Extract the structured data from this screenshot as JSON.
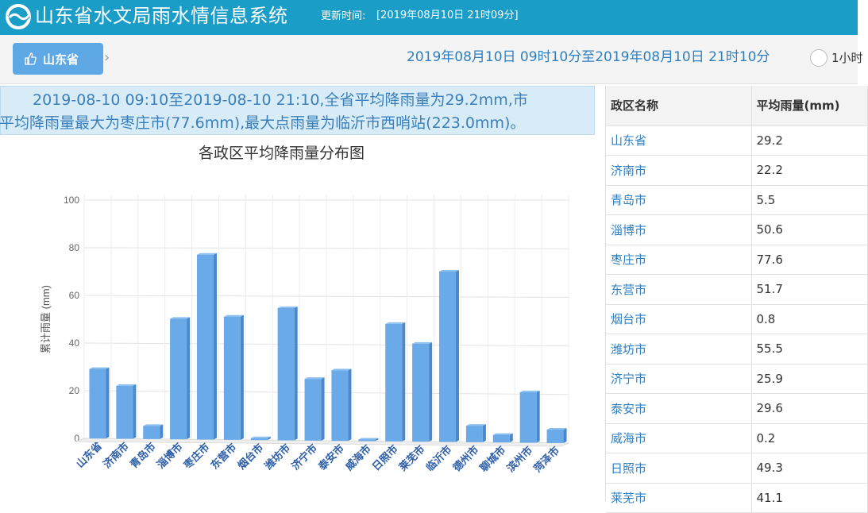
{
  "header": {
    "title": "山东省水文局雨水情信息系统",
    "update_label": "更新时间:",
    "update_time": "[2019年08月10日 21时09分]"
  },
  "toolbar": {
    "region_button": "山东省",
    "breadcrumb_arrow": "›",
    "time_range": "2019年08月10日 09时10分至2019年08月10日 21时10分",
    "radio_label": "1小时"
  },
  "summary": {
    "line1": "2019-08-10 09:10至2019-08-10 21:10,全省平均降雨量为29.2mm,市",
    "line2": "平均降雨量最大为枣庄市(77.6mm),最大点雨量为临沂市西哨站(223.0mm)。"
  },
  "chart_data": {
    "type": "bar",
    "title": "各政区平均降雨量分布图",
    "ylabel": "累计雨量 (mm)",
    "ylim": [
      0,
      100
    ],
    "yticks": [
      0,
      20,
      40,
      60,
      80,
      100
    ],
    "categories": [
      "山东省",
      "济南市",
      "青岛市",
      "淄博市",
      "枣庄市",
      "东营市",
      "烟台市",
      "潍坊市",
      "济宁市",
      "泰安市",
      "威海市",
      "日照市",
      "莱芜市",
      "临沂市",
      "德州市",
      "聊城市",
      "滨州市",
      "菏泽市"
    ],
    "values": [
      29.2,
      22.2,
      5.5,
      50.6,
      77.6,
      51.7,
      0.8,
      55.5,
      25.9,
      29.6,
      0.2,
      49.3,
      41.1,
      71.5,
      6.9,
      3.2,
      21.2,
      5.6
    ],
    "grid": true,
    "legend": "none",
    "bar_color": "#6aaae8"
  },
  "table": {
    "headers": [
      "政区名称",
      "平均雨量(mm)"
    ],
    "rows": [
      [
        "山东省",
        "29.2"
      ],
      [
        "济南市",
        "22.2"
      ],
      [
        "青岛市",
        "5.5"
      ],
      [
        "淄博市",
        "50.6"
      ],
      [
        "枣庄市",
        "77.6"
      ],
      [
        "东营市",
        "51.7"
      ],
      [
        "烟台市",
        "0.8"
      ],
      [
        "潍坊市",
        "55.5"
      ],
      [
        "济宁市",
        "25.9"
      ],
      [
        "泰安市",
        "29.6"
      ],
      [
        "威海市",
        "0.2"
      ],
      [
        "日照市",
        "49.3"
      ],
      [
        "莱芜市",
        "41.1"
      ]
    ]
  }
}
